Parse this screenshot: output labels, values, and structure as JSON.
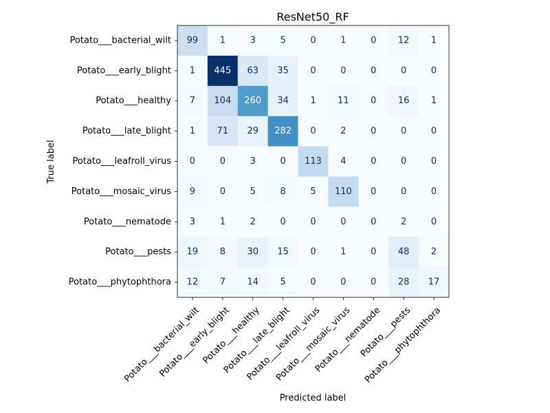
{
  "chart_data": {
    "type": "heatmap",
    "title": "ResNet50_RF",
    "xlabel": "Predicted label",
    "ylabel": "True label",
    "colormap": "Blues",
    "color_low": "#f7fbff",
    "color_high": "#08306b",
    "text_dark": "#08306b",
    "text_light": "#ffffff",
    "categories": [
      "Potato___bacterial_wilt",
      "Potato___early_blight",
      "Potato___healthy",
      "Potato___late_blight",
      "Potato___leafroll_virus",
      "Potato___mosaic_virus",
      "Potato___nematode",
      "Potato___pests",
      "Potato___phytophthora"
    ],
    "matrix": [
      [
        99,
        1,
        3,
        5,
        0,
        1,
        0,
        12,
        1
      ],
      [
        1,
        445,
        63,
        35,
        0,
        0,
        0,
        0,
        0
      ],
      [
        7,
        104,
        260,
        34,
        1,
        11,
        0,
        16,
        1
      ],
      [
        1,
        71,
        29,
        282,
        0,
        2,
        0,
        0,
        0
      ],
      [
        0,
        0,
        3,
        0,
        113,
        4,
        0,
        0,
        0
      ],
      [
        9,
        0,
        5,
        8,
        5,
        110,
        0,
        0,
        0
      ],
      [
        3,
        1,
        2,
        0,
        0,
        0,
        0,
        2,
        0
      ],
      [
        19,
        8,
        30,
        15,
        0,
        1,
        0,
        48,
        2
      ],
      [
        12,
        7,
        14,
        5,
        0,
        0,
        0,
        28,
        17
      ]
    ]
  }
}
